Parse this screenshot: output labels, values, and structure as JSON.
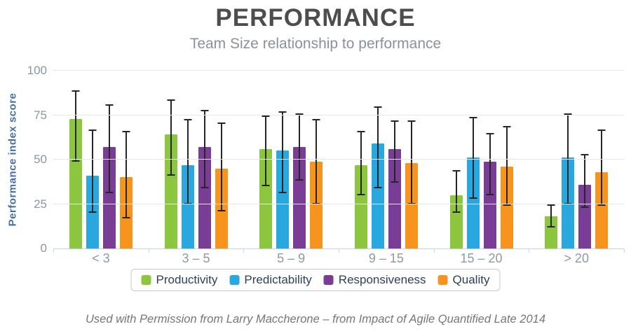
{
  "page": {
    "title": "PERFORMANCE",
    "subtitle": "Team Size relationship to performance",
    "caption": "Used with Permission from Larry Maccherone – from Impact of Agile Quantified Late 2014"
  },
  "chart_data": {
    "type": "bar",
    "title": "PERFORMANCE",
    "subtitle": "Team Size relationship to performance",
    "xlabel": "",
    "ylabel": "Performance index score",
    "ylim": [
      0,
      100
    ],
    "yticks": [
      0,
      25,
      50,
      75,
      100
    ],
    "grid": true,
    "error_bars": true,
    "legend_position": "bottom",
    "categories": [
      "< 3",
      "3 – 5",
      "5 – 9",
      "9 – 15",
      "15 – 20",
      "> 20"
    ],
    "series": [
      {
        "name": "Productivity",
        "color": "#8CC63F",
        "values": [
          73,
          64,
          56,
          47,
          30,
          18
        ],
        "error_low": [
          49,
          41,
          35,
          30,
          20,
          12
        ],
        "error_high": [
          89,
          84,
          75,
          66,
          44,
          25
        ]
      },
      {
        "name": "Predictability",
        "color": "#29A8DF",
        "values": [
          41,
          47,
          55,
          59,
          51,
          51
        ],
        "error_low": [
          20,
          25,
          31,
          34,
          28,
          25
        ],
        "error_high": [
          67,
          73,
          77,
          80,
          74,
          76
        ]
      },
      {
        "name": "Responsiveness",
        "color": "#7A3D96",
        "values": [
          57,
          57,
          57,
          56,
          49,
          36
        ],
        "error_low": [
          31,
          34,
          38,
          37,
          30,
          23
        ],
        "error_high": [
          81,
          78,
          76,
          72,
          65,
          53
        ]
      },
      {
        "name": "Quality",
        "color": "#F7941D",
        "values": [
          40,
          45,
          49,
          48,
          46,
          43
        ],
        "error_low": [
          17,
          21,
          25,
          25,
          24,
          24
        ],
        "error_high": [
          66,
          71,
          73,
          72,
          69,
          67
        ]
      }
    ]
  },
  "colors": {
    "title": "#4d4d4d",
    "subtitle": "#8b909a",
    "y_axis_title": "#4470a1",
    "tick_labels": "#8a96a4",
    "gridline": "#e4e7eb",
    "axis_line": "#c6d3de",
    "error_bar": "#262626",
    "legend_text": "#2d4157",
    "caption": "#767676"
  }
}
